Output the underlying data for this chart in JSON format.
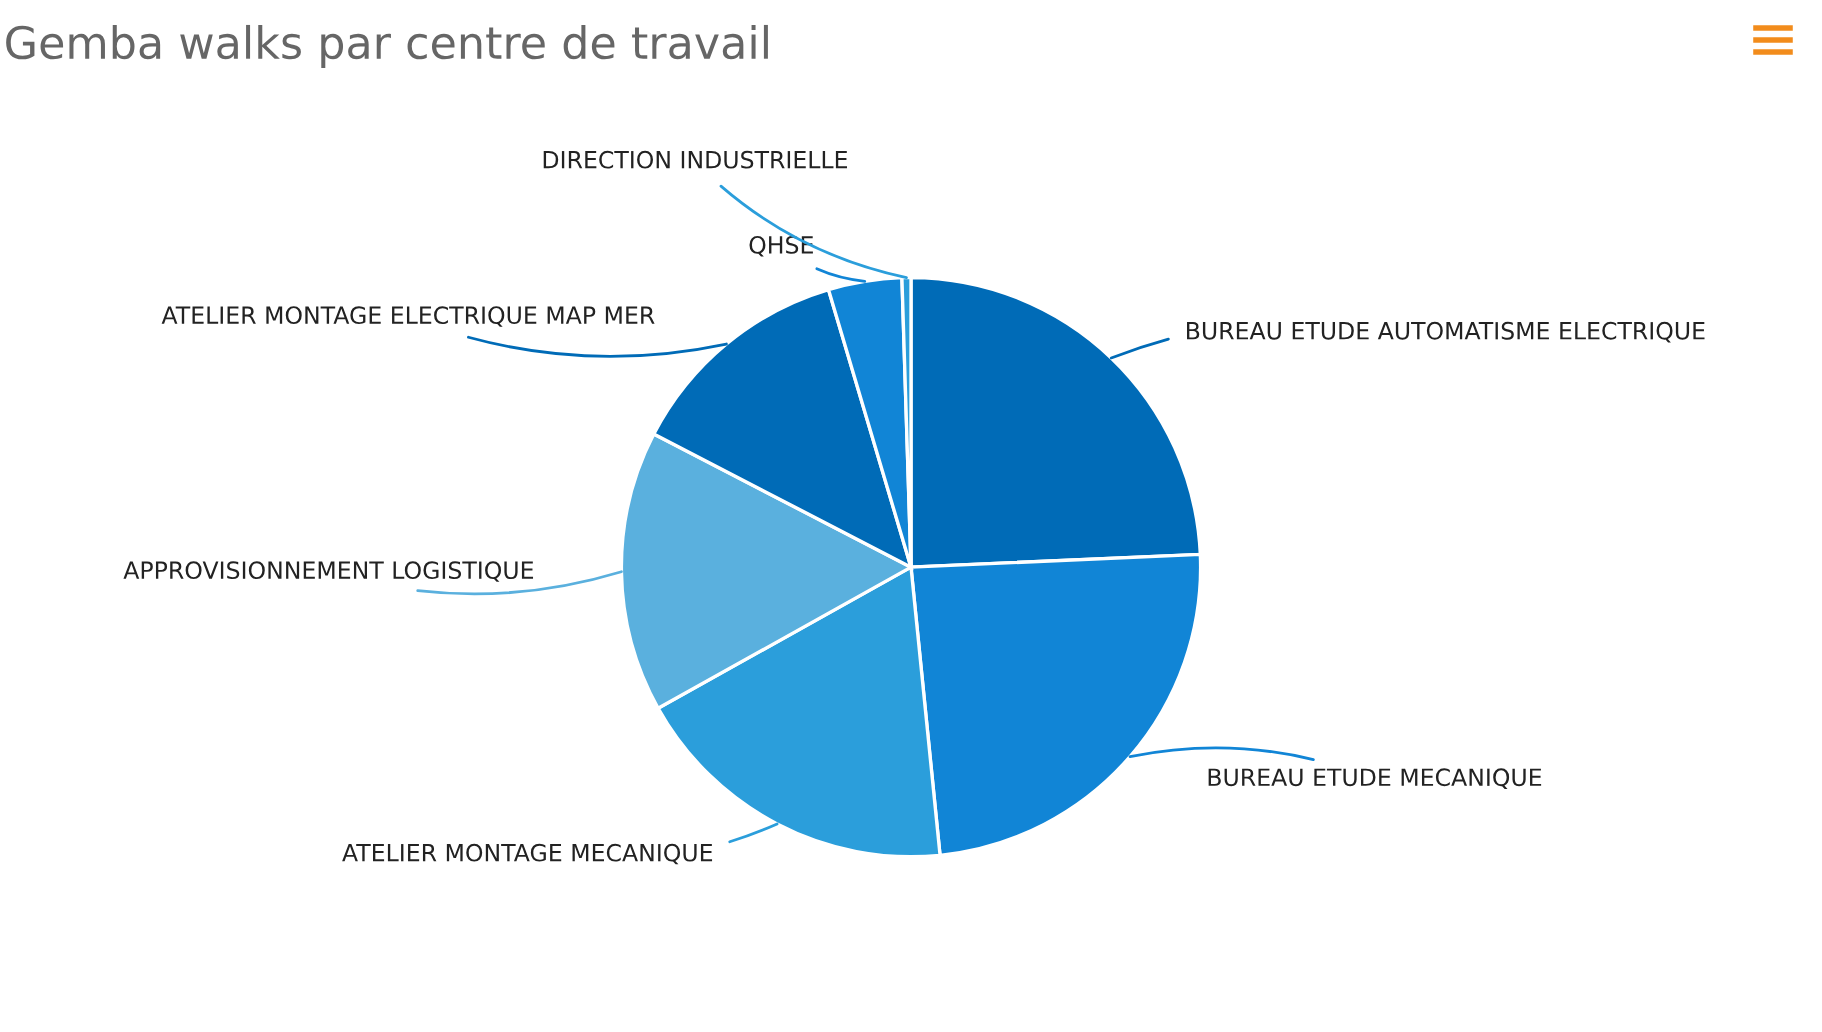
{
  "chart_data": {
    "type": "pie",
    "title": "Gemba walks par centre de travail",
    "categories": [
      "BUREAU ETUDE AUTOMATISME ELECTRIQUE",
      "BUREAU ETUDE MECANIQUE",
      "ATELIER MONTAGE MECANIQUE",
      "APPROVISIONNEMENT LOGISTIQUE",
      "ATELIER MONTAGE ELECTRIQUE MAP MER",
      "QHSE",
      "DIRECTION INDUSTRIELLE"
    ],
    "values": [
      24.3,
      24.1,
      18.5,
      15.7,
      12.8,
      4.1,
      0.5
    ],
    "colors": [
      "#006bb7",
      "#1185d6",
      "#2b9edb",
      "#5ab0de",
      "#006bb7",
      "#1185d6",
      "#2b9edb"
    ]
  }
}
